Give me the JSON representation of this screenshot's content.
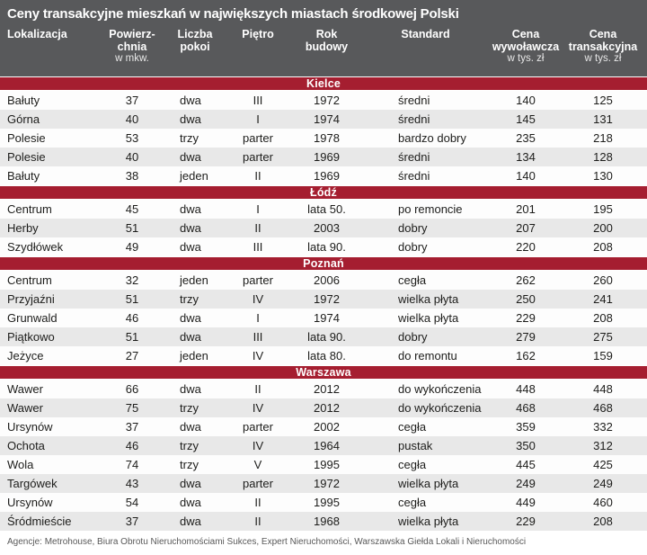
{
  "title": "Ceny transakcyjne mieszkań w największych miastach środkowej Polski",
  "colors": {
    "header_bg": "#58595b",
    "accent_red": "#a51e30",
    "row_alt_bg": "#e8e8e8",
    "row_bg": "#fdfdfd"
  },
  "header": {
    "columns": [
      {
        "line1": "Lokalizacja",
        "line2": "",
        "sub": ""
      },
      {
        "line1": "Powierz-",
        "line2": "chnia",
        "sub": "w mkw."
      },
      {
        "line1": "Liczba",
        "line2": "pokoi",
        "sub": ""
      },
      {
        "line1": "Piętro",
        "line2": "",
        "sub": ""
      },
      {
        "line1": "Rok",
        "line2": "budowy",
        "sub": ""
      },
      {
        "line1": "Standard",
        "line2": "",
        "sub": ""
      },
      {
        "line1": "Cena",
        "line2": "wywoławcza",
        "sub": "w tys. zł"
      },
      {
        "line1": "Cena",
        "line2": "transakcyjna",
        "sub": "w tys. zł"
      }
    ]
  },
  "chart_data": {
    "type": "table",
    "title": "Ceny transakcyjne mieszkań w największych miastach środkowej Polski",
    "columns": [
      "Lokalizacja",
      "Powierzchnia w mkw.",
      "Liczba pokoi",
      "Piętro",
      "Rok budowy",
      "Standard",
      "Cena wywoławcza w tys. zł",
      "Cena transakcyjna w tys. zł"
    ],
    "groups": [
      {
        "name": "Kielce",
        "rows": [
          [
            "Bałuty",
            "37",
            "dwa",
            "III",
            "1972",
            "średni",
            "140",
            "125"
          ],
          [
            "Górna",
            "40",
            "dwa",
            "I",
            "1974",
            "średni",
            "145",
            "131"
          ],
          [
            "Polesie",
            "53",
            "trzy",
            "parter",
            "1978",
            "bardzo dobry",
            "235",
            "218"
          ],
          [
            "Polesie",
            "40",
            "dwa",
            "parter",
            "1969",
            "średni",
            "134",
            "128"
          ],
          [
            "Bałuty",
            "38",
            "jeden",
            "II",
            "1969",
            "średni",
            "140",
            "130"
          ]
        ]
      },
      {
        "name": "Łódź",
        "rows": [
          [
            "Centrum",
            "45",
            "dwa",
            "I",
            "lata 50.",
            "po remoncie",
            "201",
            "195"
          ],
          [
            "Herby",
            "51",
            "dwa",
            "II",
            "2003",
            "dobry",
            "207",
            "200"
          ],
          [
            "Szydłówek",
            "49",
            "dwa",
            "III",
            "lata 90.",
            "dobry",
            "220",
            "208"
          ]
        ]
      },
      {
        "name": "Poznań",
        "rows": [
          [
            "Centrum",
            "32",
            "jeden",
            "parter",
            "2006",
            "cegła",
            "262",
            "260"
          ],
          [
            "Przyjaźni",
            "51",
            "trzy",
            "IV",
            "1972",
            "wielka płyta",
            "250",
            "241"
          ],
          [
            "Grunwald",
            "46",
            "dwa",
            "I",
            "1974",
            "wielka płyta",
            "229",
            "208"
          ],
          [
            "Piątkowo",
            "51",
            "dwa",
            "III",
            "lata 90.",
            "dobry",
            "279",
            "275"
          ],
          [
            "Jeżyce",
            "27",
            "jeden",
            "IV",
            "lata 80.",
            "do remontu",
            "162",
            "159"
          ]
        ]
      },
      {
        "name": "Warszawa",
        "rows": [
          [
            "Wawer",
            "66",
            "dwa",
            "II",
            "2012",
            "do wykończenia",
            "448",
            "448"
          ],
          [
            "Wawer",
            "75",
            "trzy",
            "IV",
            "2012",
            "do wykończenia",
            "468",
            "468"
          ],
          [
            "Ursynów",
            "37",
            "dwa",
            "parter",
            "2002",
            "cegła",
            "359",
            "332"
          ],
          [
            "Ochota",
            "46",
            "trzy",
            "IV",
            "1964",
            "pustak",
            "350",
            "312"
          ],
          [
            "Wola",
            "74",
            "trzy",
            "V",
            "1995",
            "cegła",
            "445",
            "425"
          ],
          [
            "Targówek",
            "43",
            "dwa",
            "parter",
            "1972",
            "wielka płyta",
            "249",
            "249"
          ],
          [
            "Ursynów",
            "54",
            "dwa",
            "II",
            "1995",
            "cegła",
            "449",
            "460"
          ],
          [
            "Śródmieście",
            "37",
            "dwa",
            "II",
            "1968",
            "wielka płyta",
            "229",
            "208"
          ]
        ]
      }
    ]
  },
  "footer": "Agencje: Metrohouse, Biura Obrotu Nieruchomościami Sukces, Expert Nieruchomości, Warszawska Giełda Lokali i Nieruchomości"
}
